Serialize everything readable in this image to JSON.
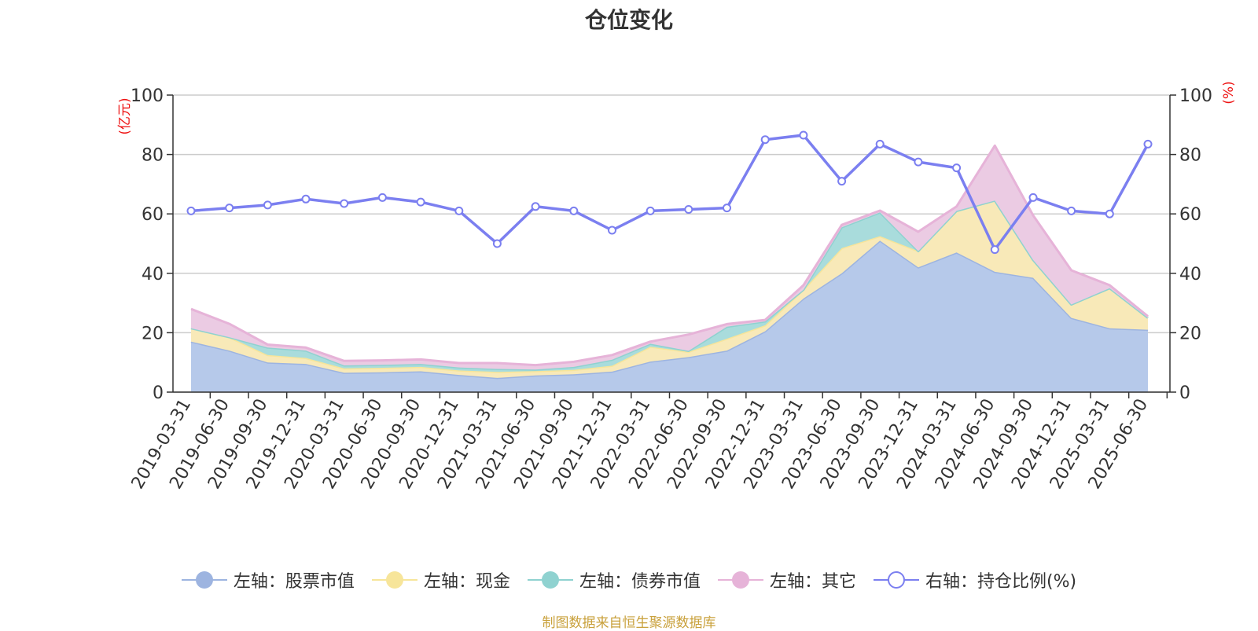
{
  "title": "仓位变化",
  "source_note": "制图数据来自恒生聚源数据库",
  "chart_data": {
    "type": "area",
    "categories": [
      "2019-03-31",
      "2019-06-30",
      "2019-09-30",
      "2019-12-31",
      "2020-03-31",
      "2020-06-30",
      "2020-09-30",
      "2020-12-31",
      "2021-03-31",
      "2021-06-30",
      "2021-09-30",
      "2021-12-31",
      "2022-03-31",
      "2022-06-30",
      "2022-09-30",
      "2022-12-31",
      "2023-03-31",
      "2023-06-30",
      "2023-09-30",
      "2023-12-31",
      "2024-03-31",
      "2024-06-30",
      "2024-09-30",
      "2024-12-31",
      "2025-03-31",
      "2025-06-30"
    ],
    "left_axis": {
      "label": "(亿元)",
      "ylim": [
        0,
        100
      ],
      "ticks": [
        0,
        20,
        40,
        60,
        80,
        100
      ]
    },
    "right_axis": {
      "label": "(%)",
      "ylim": [
        0,
        100
      ],
      "ticks": [
        0,
        20,
        40,
        60,
        80,
        100
      ]
    },
    "grid": true,
    "legend_position": "bottom",
    "series": [
      {
        "name": "左轴：股票市值",
        "axis": "left",
        "kind": "area",
        "color": "#9db4e0",
        "fill": "#b6c9ea",
        "values": [
          17,
          14,
          10,
          9.5,
          6.5,
          6.7,
          7,
          5.8,
          4.8,
          5.6,
          6,
          6.9,
          10.3,
          11.8,
          14,
          20.5,
          31.5,
          40,
          51,
          42,
          47,
          40.5,
          38.5,
          25,
          21.5,
          21
        ]
      },
      {
        "name": "左轴：现金",
        "axis": "left",
        "kind": "area",
        "color": "#f7e59a",
        "fill": "#f8e9b8",
        "values": [
          4.5,
          4.5,
          2.5,
          2,
          1.5,
          1.5,
          1.5,
          1.5,
          2,
          1.5,
          1.5,
          2,
          5,
          1.8,
          4,
          2,
          3,
          8.5,
          1.5,
          5.5,
          14,
          24,
          6,
          4.5,
          13.5,
          4
        ]
      },
      {
        "name": "左轴：债券市值",
        "axis": "left",
        "kind": "area",
        "color": "#8fd2d0",
        "fill": "#a9dcdc",
        "values": [
          0,
          0,
          2.5,
          2.5,
          1,
          1,
          1,
          1,
          1,
          0.5,
          1,
          2,
          1,
          0.3,
          4,
          1.3,
          0,
          7,
          8,
          0,
          0,
          0,
          0,
          0,
          0,
          0
        ]
      },
      {
        "name": "左轴：其它",
        "axis": "left",
        "kind": "area",
        "color": "#e6b3d8",
        "fill": "#ebcbe3",
        "values": [
          6.5,
          4.5,
          1,
          1,
          1.5,
          1.5,
          1.5,
          1.5,
          2,
          1.5,
          1.7,
          1.6,
          0.7,
          5.5,
          0.9,
          0.5,
          1.5,
          0.8,
          0.6,
          6.5,
          1.5,
          18.5,
          15,
          11.5,
          1,
          0.5
        ]
      },
      {
        "name": "右轴：持仓比例(%)",
        "axis": "right",
        "kind": "line",
        "color": "#7b7ff0",
        "values": [
          61,
          62,
          63,
          65,
          63.5,
          65.5,
          64,
          61,
          50,
          62.5,
          61,
          54.5,
          61,
          61.5,
          62,
          85,
          86.5,
          71,
          83.5,
          77.5,
          75.5,
          48,
          65.5,
          61,
          60,
          83.5
        ]
      }
    ]
  }
}
